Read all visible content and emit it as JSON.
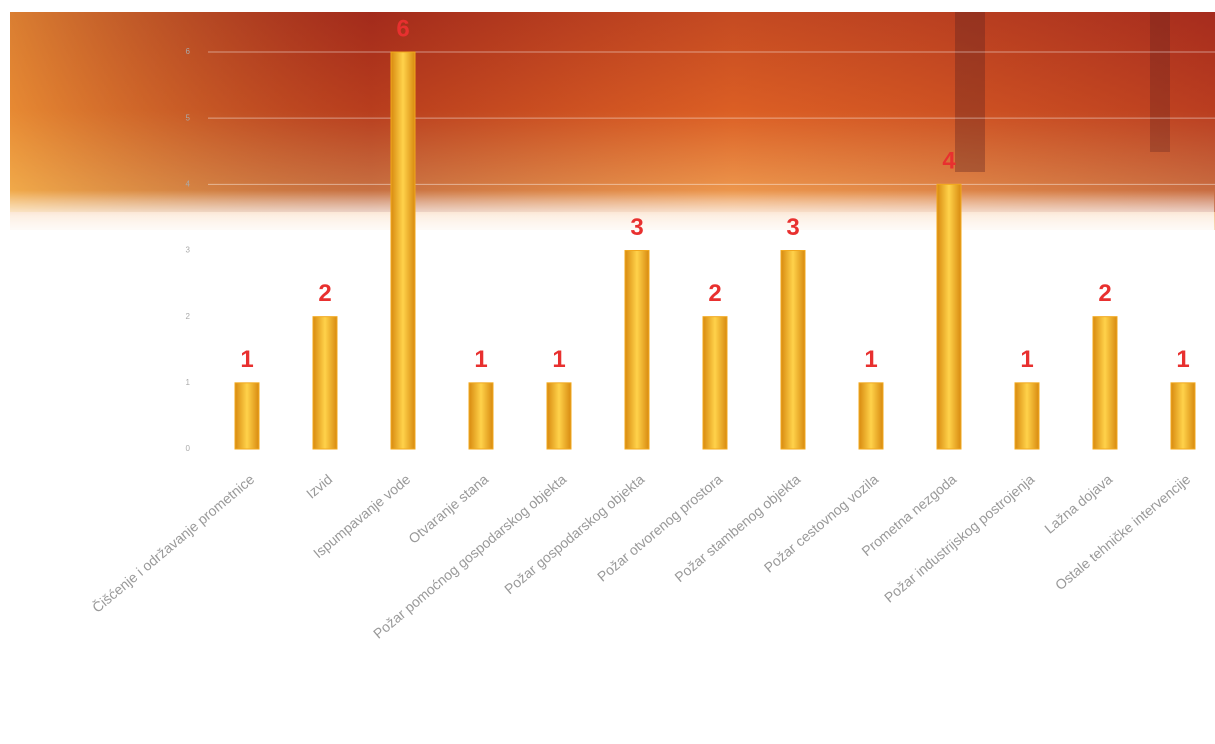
{
  "chart_data": {
    "type": "bar",
    "categories": [
      "Čišćenje i održavanje prometnice",
      "Izvid",
      "Ispumpavanje vode",
      "Otvaranje stana",
      "Požar pomoćnog gospodarskog objekta",
      "Požar gospodarskog objekta",
      "Požar otvorenog prostora",
      "Požar stambenog objekta",
      "Požar cestovnog vozila",
      "Prometna nezgoda",
      "Požar industrijskog postrojenja",
      "Lažna dojava",
      "Ostale tehničke intervencije"
    ],
    "values": [
      1,
      2,
      6,
      1,
      1,
      3,
      2,
      3,
      1,
      4,
      1,
      2,
      1
    ],
    "color": "#f2a81d",
    "label_color": "#e8302f",
    "ylim": [
      0,
      6
    ],
    "yticks": [
      0,
      1,
      2,
      3,
      4,
      5,
      6
    ],
    "grid": true
  }
}
